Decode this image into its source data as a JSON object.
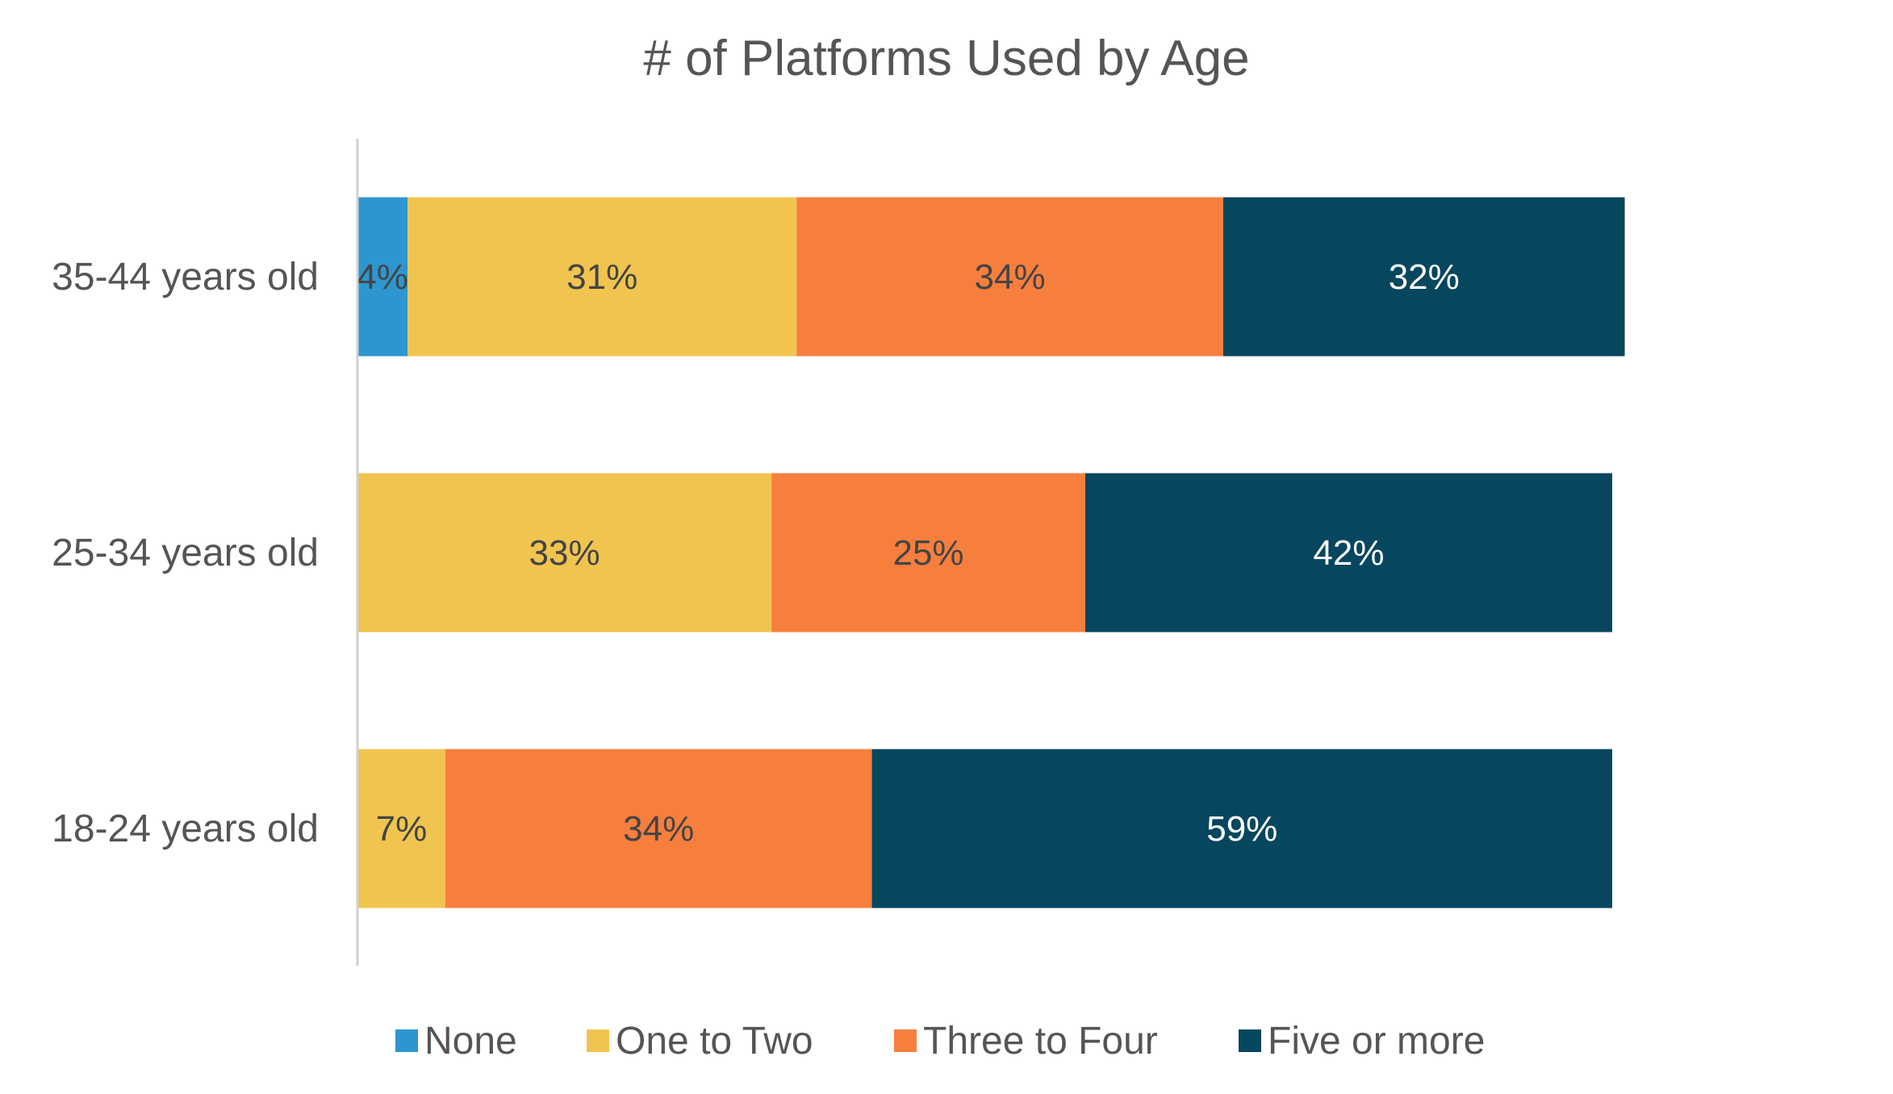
{
  "chart_data": {
    "type": "bar",
    "orientation": "horizontal",
    "stacked": true,
    "title": "# of Platforms Used by Age",
    "categories": [
      "35-44 years old",
      "25-34 years old",
      "18-24 years old"
    ],
    "series": [
      {
        "name": "None",
        "color": "#2e96cf",
        "values": [
          4,
          0,
          0
        ],
        "labels": [
          "4%",
          "",
          ""
        ],
        "label_color": "#444444"
      },
      {
        "name": "One to Two",
        "color": "#f0c44f",
        "values": [
          31,
          33,
          7
        ],
        "labels": [
          "31%",
          "33%",
          "7%"
        ],
        "label_color": "#444444"
      },
      {
        "name": "Three to Four",
        "color": "#f77f3e",
        "values": [
          34,
          25,
          34
        ],
        "labels": [
          "34%",
          "25%",
          "34%"
        ],
        "label_color": "#444444"
      },
      {
        "name": "Five or more",
        "color": "#07465f",
        "values": [
          32,
          42,
          59
        ],
        "labels": [
          "32%",
          "42%",
          "59%"
        ],
        "label_color": "#ffffff"
      }
    ],
    "xlim": [
      0,
      100
    ],
    "grid": false,
    "legend_position": "bottom",
    "axis_color": "#d0d0d0",
    "text_color": "#555555"
  }
}
